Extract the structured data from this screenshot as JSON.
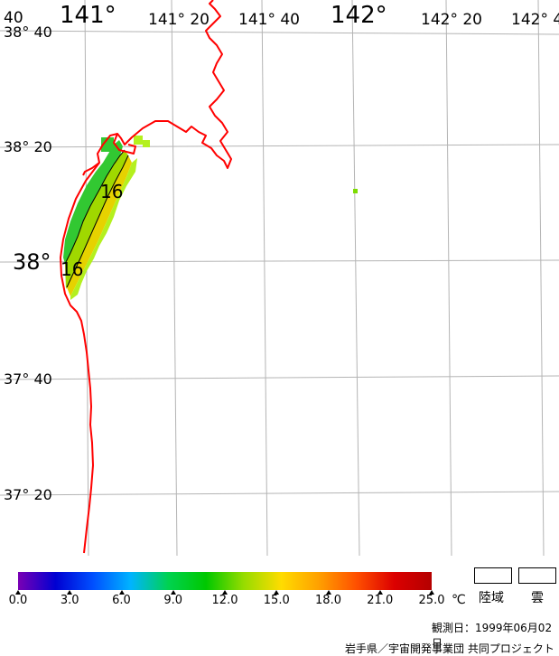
{
  "map": {
    "lon_labels": [
      {
        "text": "141°",
        "size": "big"
      },
      {
        "text": "141° 20",
        "size": "sm"
      },
      {
        "text": "141° 40",
        "size": "sm"
      },
      {
        "text": "142°",
        "size": "big"
      },
      {
        "text": "142° 20",
        "size": "sm"
      },
      {
        "text": "142° 4",
        "size": "sm"
      },
      {
        "text": "40",
        "size": "sm"
      }
    ],
    "lat_labels": [
      {
        "text": "38° 40",
        "size": "sm"
      },
      {
        "text": "38° 20",
        "size": "sm"
      },
      {
        "text": "38°",
        "size": "big"
      },
      {
        "text": "37° 40",
        "size": "sm"
      },
      {
        "text": "37° 20",
        "size": "sm"
      }
    ],
    "contour_labels": [
      "16",
      "16"
    ],
    "coast_color": "#ff0000",
    "grid_color": "#b4b4b4",
    "contour_color": "#000000"
  },
  "colorbar": {
    "ticks": [
      "0.0",
      "3.0",
      "6.0",
      "9.0",
      "12.0",
      "15.0",
      "18.0",
      "21.0",
      "25.0"
    ],
    "unit": "℃",
    "stops": [
      "#7a00b4",
      "#0000d2",
      "#0050ff",
      "#00b4ff",
      "#00d250",
      "#00c800",
      "#96dc00",
      "#ffdc00",
      "#ffa000",
      "#ff5000",
      "#dc0000",
      "#b40000"
    ]
  },
  "legend": {
    "land_label": "陸域",
    "cloud_label": "雲"
  },
  "footer": {
    "observation_date": "観測日：1999年06月02日",
    "credit": "岩手県／宇宙開発事業団 共同プロジェクト"
  }
}
